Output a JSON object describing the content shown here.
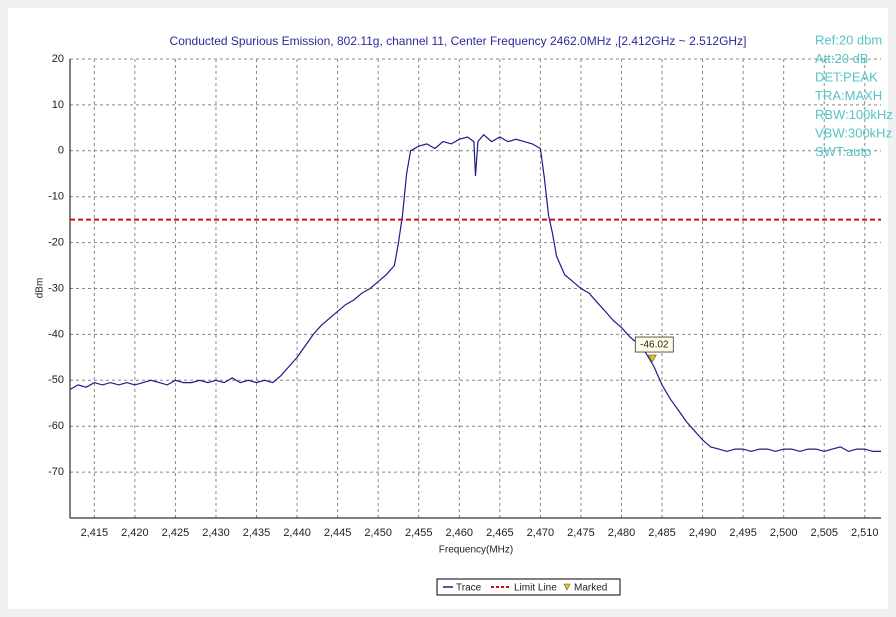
{
  "chart_data": {
    "type": "line",
    "title": "Conducted Spurious Emission, 802.11g, channel 11, Center Frequency 2462.0MHz ,[2.412GHz ~ 2.512GHz]",
    "xlabel": "Frequency(MHz)",
    "ylabel": "dBm",
    "xlim": [
      2412,
      2512
    ],
    "ylim": [
      -80,
      20
    ],
    "xticks": [
      {
        "value": 2415,
        "label": "2,415"
      },
      {
        "value": 2420,
        "label": "2,420"
      },
      {
        "value": 2425,
        "label": "2,425"
      },
      {
        "value": 2430,
        "label": "2,430"
      },
      {
        "value": 2435,
        "label": "2,435"
      },
      {
        "value": 2440,
        "label": "2,440"
      },
      {
        "value": 2445,
        "label": "2,445"
      },
      {
        "value": 2450,
        "label": "2,450"
      },
      {
        "value": 2455,
        "label": "2,455"
      },
      {
        "value": 2460,
        "label": "2,460"
      },
      {
        "value": 2465,
        "label": "2,465"
      },
      {
        "value": 2470,
        "label": "2,470"
      },
      {
        "value": 2475,
        "label": "2,475"
      },
      {
        "value": 2480,
        "label": "2,480"
      },
      {
        "value": 2485,
        "label": "2,485"
      },
      {
        "value": 2490,
        "label": "2,490"
      },
      {
        "value": 2495,
        "label": "2,495"
      },
      {
        "value": 2500,
        "label": "2,500"
      },
      {
        "value": 2505,
        "label": "2,505"
      },
      {
        "value": 2510,
        "label": "2,510"
      }
    ],
    "yticks": [
      20,
      10,
      0,
      -10,
      -20,
      -30,
      -40,
      -50,
      -60,
      -70
    ],
    "grid": true,
    "series": [
      {
        "name": "Trace",
        "color": "#1c1c8a",
        "x": [
          2412,
          2413,
          2414,
          2415,
          2416,
          2417,
          2418,
          2419,
          2420,
          2421,
          2422,
          2423,
          2424,
          2425,
          2426,
          2427,
          2428,
          2429,
          2430,
          2431,
          2432,
          2433,
          2434,
          2435,
          2436,
          2437,
          2438,
          2439,
          2440,
          2441,
          2442,
          2443,
          2444,
          2445,
          2446,
          2447,
          2448,
          2449,
          2450,
          2451,
          2452,
          2452.5,
          2453,
          2453.5,
          2454,
          2455,
          2456,
          2457,
          2458,
          2459,
          2460,
          2461,
          2461.8,
          2462,
          2462.3,
          2463,
          2464,
          2465,
          2466,
          2467,
          2468,
          2469,
          2470,
          2470.5,
          2471,
          2471.5,
          2472,
          2473,
          2474,
          2475,
          2476,
          2477,
          2478,
          2479,
          2480,
          2481,
          2482,
          2483,
          2484,
          2485,
          2486,
          2487,
          2488,
          2489,
          2490,
          2491,
          2492,
          2493,
          2494,
          2495,
          2496,
          2497,
          2498,
          2499,
          2500,
          2501,
          2502,
          2503,
          2504,
          2505,
          2506,
          2507,
          2508,
          2509,
          2510,
          2511,
          2512
        ],
        "values": [
          -52,
          -51,
          -51.5,
          -50.5,
          -51,
          -50.5,
          -51,
          -50.5,
          -51,
          -50.5,
          -50,
          -50.5,
          -51,
          -50,
          -50.5,
          -50.5,
          -50,
          -50.5,
          -50,
          -50.5,
          -49.5,
          -50.5,
          -50,
          -50.5,
          -50,
          -50.5,
          -49,
          -47,
          -45,
          -42.5,
          -40,
          -38,
          -36.5,
          -35,
          -33.5,
          -32.5,
          -31,
          -30,
          -28.5,
          -27,
          -25,
          -20,
          -14,
          -5,
          0,
          1,
          1.5,
          0.5,
          2,
          1.5,
          2.5,
          3,
          2,
          -5.5,
          2,
          3.5,
          2,
          3,
          2,
          2.5,
          2,
          1.5,
          0.5,
          -6,
          -14,
          -18,
          -23,
          -27,
          -28.5,
          -30,
          -31,
          -33,
          -35,
          -37,
          -38.5,
          -40.5,
          -42,
          -44,
          -47,
          -51,
          -54,
          -56.5,
          -59,
          -61,
          -63,
          -64.5,
          -65,
          -65.5,
          -65,
          -65,
          -65.5,
          -65,
          -65,
          -65.5,
          -65,
          -65,
          -65.5,
          -65,
          -65,
          -65.5,
          -65,
          -64.5,
          -65.5,
          -65,
          -65,
          -65.5,
          -65.5
        ]
      }
    ],
    "limit_line": {
      "name": "Limit Line",
      "value": -15,
      "color": "#d01010"
    },
    "marker": {
      "name": "Marked",
      "x": 2483.8,
      "value": -46.02,
      "color": "#e8c400"
    },
    "settings": [
      "Ref:20 dbm",
      "Att:20 dB",
      "DET:PEAK",
      "TRA:MAXH",
      "RBW:100kHz",
      "VBW:300kHz",
      "SWT:auto"
    ]
  }
}
